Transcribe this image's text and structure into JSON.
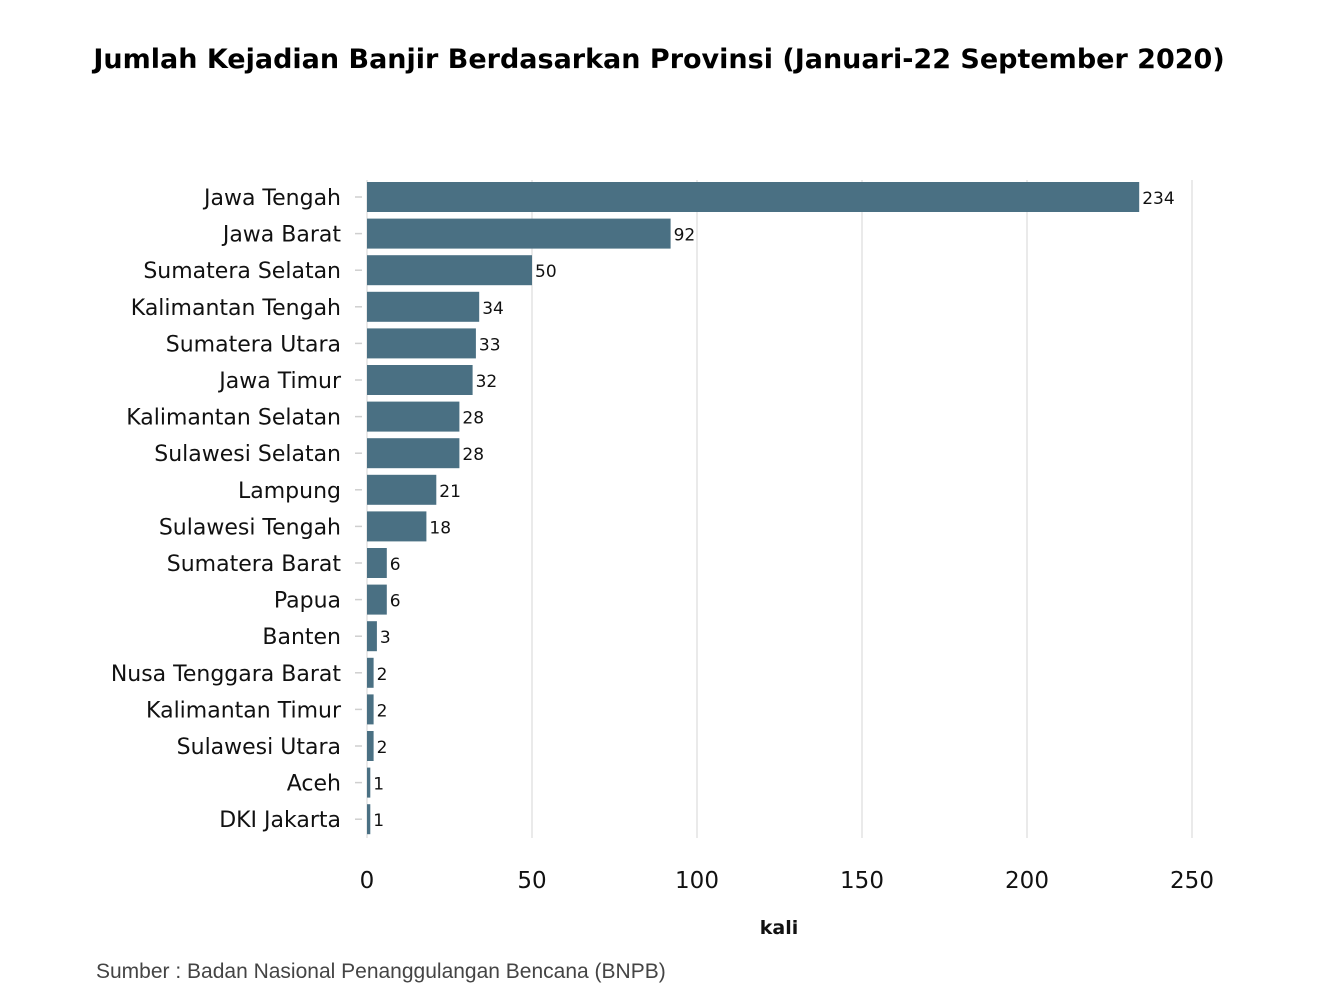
{
  "chart_data": {
    "type": "bar",
    "orientation": "horizontal",
    "title": "Jumlah Kejadian Banjir Berdasarkan Provinsi (Januari-22 September 2020)",
    "xlabel": "kali",
    "ylabel": "",
    "xlim": [
      0,
      250
    ],
    "xticks": [
      0,
      50,
      100,
      150,
      200,
      250
    ],
    "grid": "vertical",
    "bar_color": "#4a7083",
    "categories": [
      "Jawa Tengah",
      "Jawa Barat",
      "Sumatera Selatan",
      "Kalimantan Tengah",
      "Sumatera Utara",
      "Jawa Timur",
      "Kalimantan Selatan",
      "Sulawesi Selatan",
      "Lampung",
      "Sulawesi Tengah",
      "Sumatera Barat",
      "Papua",
      "Banten",
      "Nusa Tenggara Barat",
      "Kalimantan Timur",
      "Sulawesi Utara",
      "Aceh",
      "DKI Jakarta"
    ],
    "values": [
      234,
      92,
      50,
      34,
      33,
      32,
      28,
      28,
      21,
      18,
      6,
      6,
      3,
      2,
      2,
      2,
      1,
      1
    ]
  },
  "source": "Sumber : Badan Nasional Penanggulangan Bencana (BNPB)"
}
